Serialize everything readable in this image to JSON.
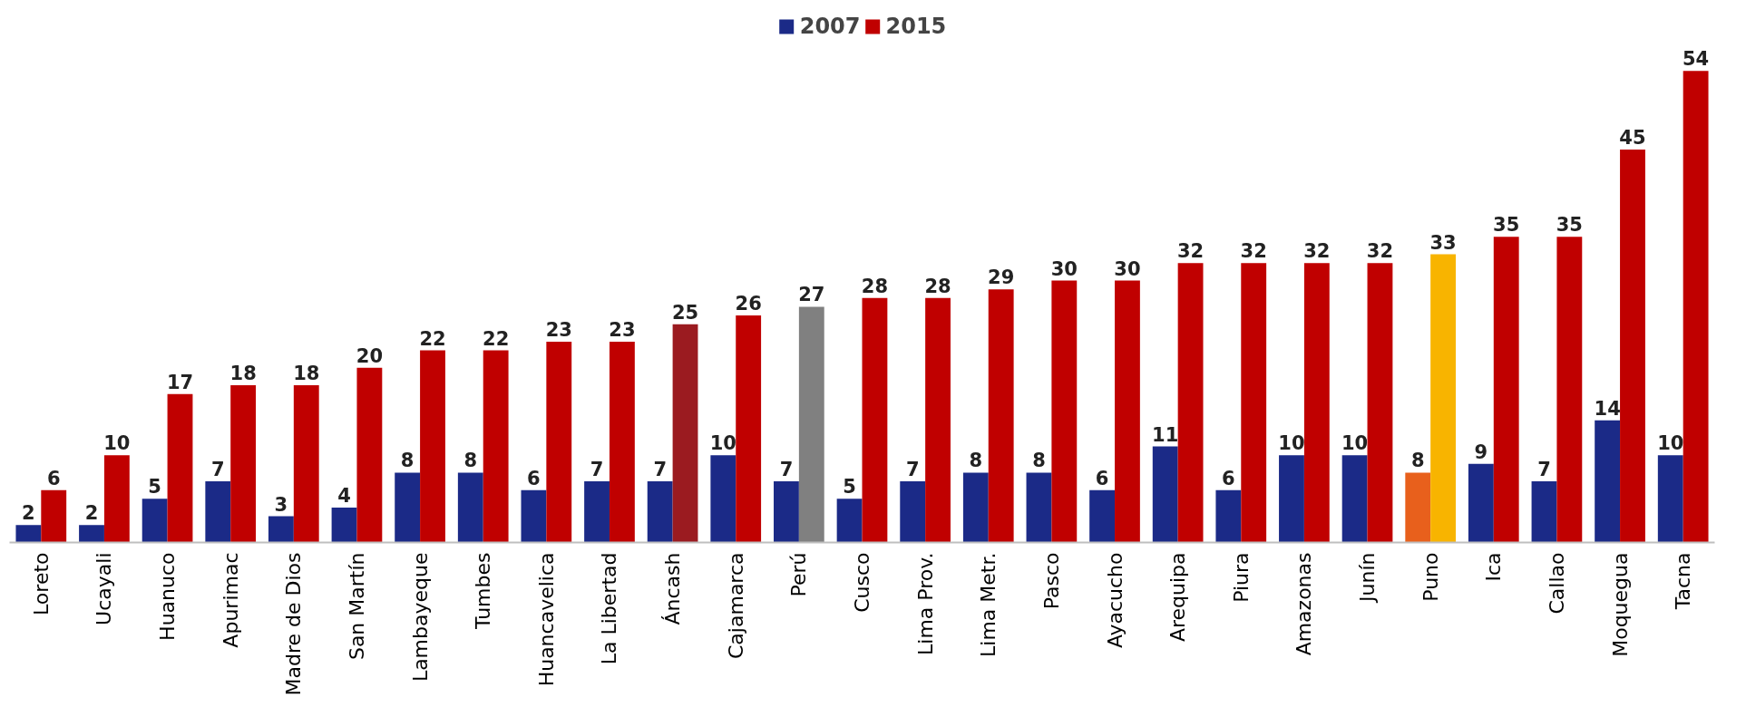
{
  "chart_data": {
    "type": "bar",
    "categories": [
      "Loreto",
      "Ucayali",
      "Huanuco",
      "Apurimac",
      "Madre de Dios",
      "San Martín",
      "Lambayeque",
      "Tumbes",
      "Huancavelica",
      "La Libertad",
      "Áncash",
      "Cajamarca",
      "Perú",
      "Cusco",
      "Lima Prov.",
      "Lima Metr.",
      "Pasco",
      "Ayacucho",
      "Arequipa",
      "Piura",
      "Amazonas",
      "Junín",
      "Puno",
      "Ica",
      "Callao",
      "Moquegua",
      "Tacna"
    ],
    "series": [
      {
        "name": "2007",
        "color": "#1b2a87",
        "values": [
          2,
          2,
          5,
          7,
          3,
          4,
          8,
          8,
          6,
          7,
          7,
          10,
          7,
          5,
          7,
          8,
          8,
          6,
          11,
          6,
          10,
          10,
          8,
          9,
          7,
          14,
          10
        ],
        "colors": [
          "#1b2a87",
          "#1b2a87",
          "#1b2a87",
          "#1b2a87",
          "#1b2a87",
          "#1b2a87",
          "#1b2a87",
          "#1b2a87",
          "#1b2a87",
          "#1b2a87",
          "#1b2a87",
          "#1b2a87",
          "#1b2a87",
          "#1b2a87",
          "#1b2a87",
          "#1b2a87",
          "#1b2a87",
          "#1b2a87",
          "#1b2a87",
          "#1b2a87",
          "#1b2a87",
          "#1b2a87",
          "#e8601c",
          "#1b2a87",
          "#1b2a87",
          "#1b2a87",
          "#1b2a87"
        ]
      },
      {
        "name": "2015",
        "color": "#c00000",
        "values": [
          6,
          10,
          17,
          18,
          18,
          20,
          22,
          22,
          23,
          23,
          25,
          26,
          27,
          28,
          28,
          29,
          30,
          30,
          32,
          32,
          32,
          32,
          33,
          35,
          35,
          45,
          54
        ],
        "colors": [
          "#c00000",
          "#c00000",
          "#c00000",
          "#c00000",
          "#c00000",
          "#c00000",
          "#c00000",
          "#c00000",
          "#c00000",
          "#c00000",
          "#9b1b20",
          "#c00000",
          "#808080",
          "#c00000",
          "#c00000",
          "#c00000",
          "#c00000",
          "#c00000",
          "#c00000",
          "#c00000",
          "#c00000",
          "#c00000",
          "#f8b400",
          "#c00000",
          "#c00000",
          "#c00000",
          "#c00000"
        ]
      }
    ],
    "data_labels": true,
    "legend": "top",
    "grid": false
  }
}
